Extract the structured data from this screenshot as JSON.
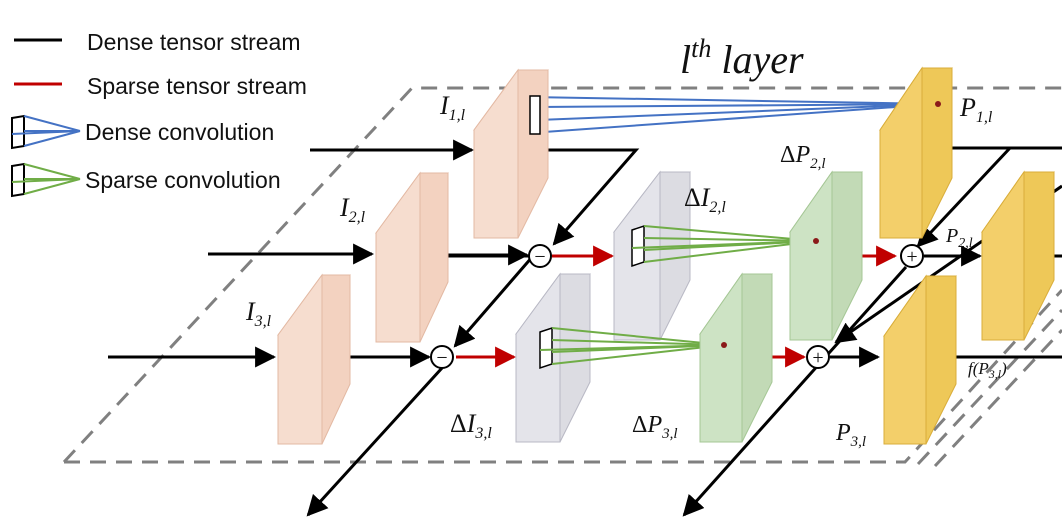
{
  "title": {
    "base": "l",
    "sup": "th",
    "rest": "layer"
  },
  "legend": {
    "dense_stream": "Dense tensor stream",
    "sparse_stream": "Sparse tensor stream",
    "dense_conv": "Dense convolution",
    "sparse_conv": "Sparse convolution"
  },
  "labels": {
    "I1": {
      "main": "I",
      "sub": "1,l"
    },
    "I2": {
      "main": "I",
      "sub": "2,l"
    },
    "I3": {
      "main": "I",
      "sub": "3,l"
    },
    "dI2": {
      "delta": "Δ",
      "main": "I",
      "sub": "2,l"
    },
    "dI3": {
      "delta": "Δ",
      "main": "I",
      "sub": "3,l"
    },
    "dP2": {
      "delta": "Δ",
      "main": "P",
      "sub": "2,l"
    },
    "dP3": {
      "delta": "Δ",
      "main": "P",
      "sub": "3,l"
    },
    "P1": {
      "main": "P",
      "sub": "1,l"
    },
    "P2": {
      "main": "P",
      "sub": "2,l"
    },
    "P3": {
      "main": "P",
      "sub": "3,l"
    },
    "fP3": {
      "func": "f(",
      "main": "P",
      "sub": "3,l",
      "close": ")"
    }
  },
  "operators": {
    "minus": "−",
    "plus": "+"
  },
  "colors": {
    "dense": "#000000",
    "sparse": "#c00000",
    "dense_conv": "#4472c4",
    "sparse_conv": "#70ad47",
    "input_fill": "#f6ddcf",
    "diff_fill": "#e2e2e6",
    "pred_fill": "#f3cf6a",
    "dpred_fill": "#cde3c4",
    "dash": "#808080"
  }
}
